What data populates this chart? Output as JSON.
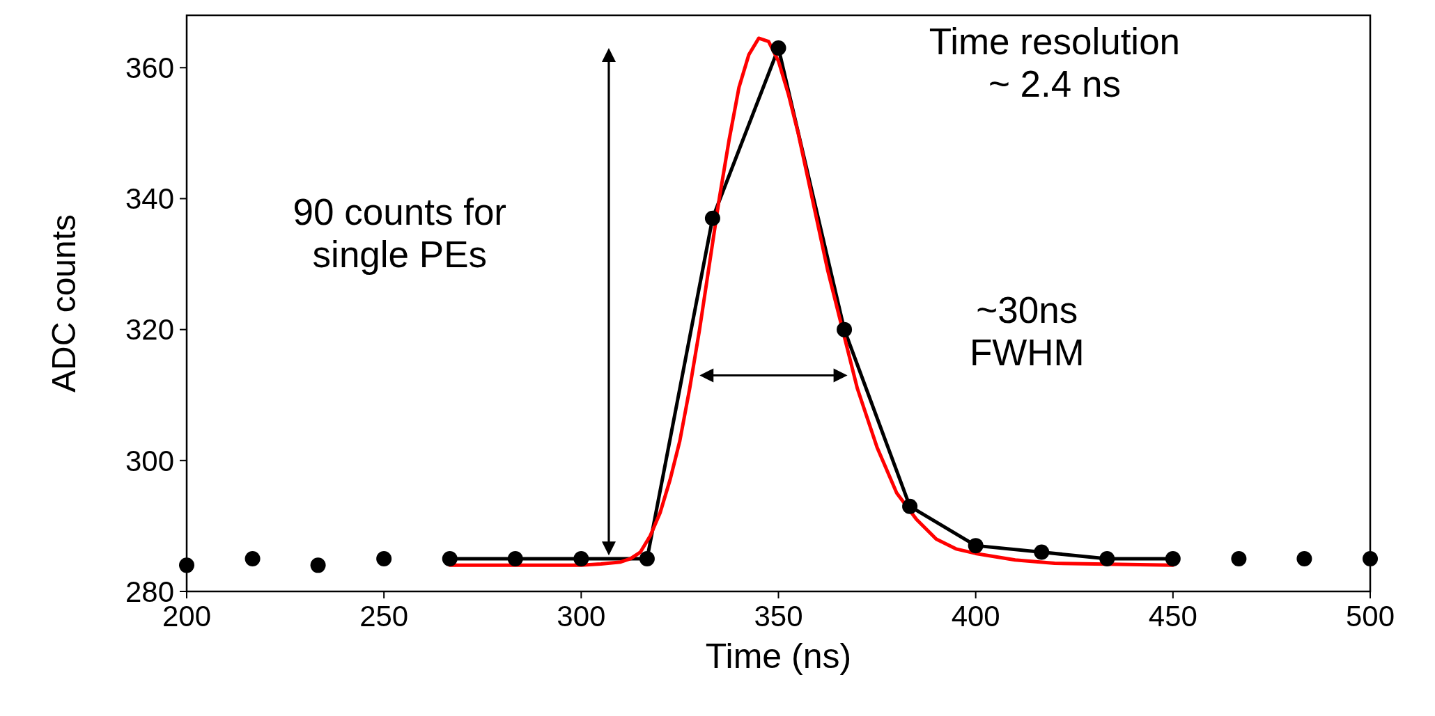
{
  "chart_data": {
    "type": "scatter",
    "xlabel": "Time (ns)",
    "ylabel": "ADC counts",
    "xlim": [
      200,
      500
    ],
    "ylim": [
      280,
      368
    ],
    "xticks": [
      200,
      250,
      300,
      350,
      400,
      450,
      500
    ],
    "yticks": [
      280,
      300,
      320,
      340,
      360
    ],
    "grid": false,
    "series": [
      {
        "color": "#000000",
        "marker": "circle",
        "x": [
          200,
          216.7,
          233.3,
          250,
          266.7,
          283.3,
          300,
          316.7,
          333.3,
          350,
          366.7,
          383.3,
          400,
          416.7,
          433.3,
          450,
          466.7,
          483.3,
          500
        ],
        "values": [
          284,
          285,
          284,
          285,
          285,
          285,
          285,
          285,
          337,
          363,
          320,
          293,
          287,
          286,
          285,
          285,
          285,
          285,
          285
        ]
      },
      {
        "type": "line",
        "color": "#000000",
        "marker": "none",
        "line_style": "solid",
        "x": [
          266.7,
          283.3,
          300,
          316.7,
          333.3,
          350,
          366.7,
          383.3,
          400,
          416.7,
          433.3,
          450
        ],
        "values": [
          285,
          285,
          285,
          285,
          337,
          363,
          320,
          293,
          287,
          286,
          285,
          285
        ]
      },
      {
        "type": "line",
        "color": "#ff0000",
        "marker": "none",
        "line_style": "solid",
        "x": [
          266.7,
          300,
          305,
          310,
          312.5,
          315,
          317.5,
          320,
          322.5,
          325,
          327.5,
          330,
          332.5,
          335,
          337.5,
          340,
          342.5,
          345,
          347.5,
          350,
          352.5,
          355,
          357.5,
          360,
          362.5,
          365,
          367.5,
          370,
          375,
          380,
          385,
          390,
          395,
          400,
          410,
          420,
          450
        ],
        "values": [
          284,
          284,
          284.2,
          284.5,
          285,
          286,
          288.5,
          292,
          297,
          303,
          311,
          320,
          330,
          340,
          349,
          357,
          362,
          364.5,
          364,
          361,
          356,
          350,
          343,
          336,
          329,
          323,
          317,
          311,
          302,
          295,
          291,
          288,
          286.5,
          285.8,
          284.8,
          284.3,
          284
        ]
      }
    ],
    "annotations": [
      "90 counts for\nsingle PEs",
      "Time resolution\n~ 2.4 ns",
      "~30ns\nFWHM"
    ]
  }
}
